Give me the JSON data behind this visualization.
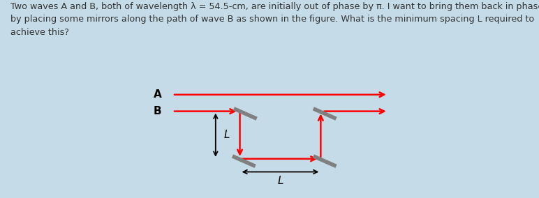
{
  "background_color": "#c5dce8",
  "box_color": "#ffffff",
  "text_color": "#333333",
  "title_text": "Two waves A and B, both of wavelength λ = 54.5-cm, are initially out of phase by π. I want to bring them back in phase\nby placing some mirrors along the path of wave B as shown in the figure. What is the minimum spacing L required to\nachieve this?",
  "wave_color": "#ff0000",
  "mirror_color": "#808080",
  "arrow_color": "#000000",
  "label_A": "A",
  "label_B": "B",
  "label_L_vert": "L",
  "label_L_horiz": "L",
  "fig_width": 7.72,
  "fig_height": 2.84,
  "dpi": 100
}
